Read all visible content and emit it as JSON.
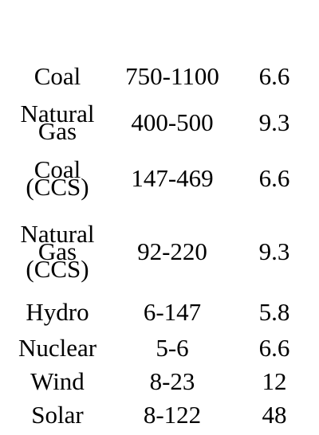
{
  "rows": [
    {
      "source": "Coal",
      "range": "750-1100",
      "value": "6.6"
    },
    {
      "source": "Natural\nGas",
      "range": "400-500",
      "value": "9.3"
    },
    {
      "source": "Coal\n(CCS)",
      "range": "147-469",
      "value": "6.6"
    },
    {
      "source": "Natural\nGas\n(CCS)",
      "range": "92-220",
      "value": "9.3"
    },
    {
      "source": "Hydro",
      "range": "6-147",
      "value": "5.8"
    },
    {
      "source": "Nuclear",
      "range": "5-6",
      "value": "6.6"
    },
    {
      "source": "Wind",
      "range": "8-23",
      "value": "12"
    },
    {
      "source": "Solar",
      "range": "8-122",
      "value": "48"
    }
  ]
}
